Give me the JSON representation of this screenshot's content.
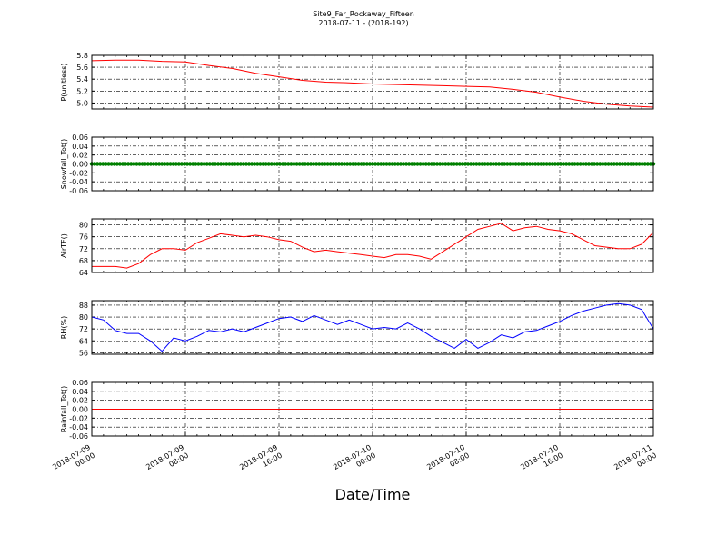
{
  "figure": {
    "title": "Site9_Far_Rockaway_Fifteen",
    "subtitle": "2018-07-11 - (2018-192)",
    "xlabel": "Date/Time"
  },
  "x_tick_labels": [
    [
      "2018-07-09",
      "00:00"
    ],
    [
      "2018-07-09",
      "08:00"
    ],
    [
      "2018-07-09",
      "16:00"
    ],
    [
      "2018-07-10",
      "00:00"
    ],
    [
      "2018-07-10",
      "08:00"
    ],
    [
      "2018-07-10",
      "16:00"
    ],
    [
      "2018-07-11",
      "00:00"
    ]
  ],
  "chart_data": [
    {
      "type": "line",
      "ylabel": "P(unitless)",
      "ylim": [
        4.9,
        5.8
      ],
      "yticks": [
        "5.8",
        "5.6",
        "5.4",
        "5.2",
        "5.0"
      ],
      "grid": true,
      "color": "#ff0000",
      "x_hours": [
        0,
        2,
        4,
        6,
        8,
        10,
        12,
        14,
        16,
        18,
        20,
        22,
        24,
        26,
        28,
        30,
        32,
        34,
        36,
        38,
        40,
        42,
        44,
        46,
        48
      ],
      "values": [
        5.71,
        5.72,
        5.72,
        5.7,
        5.69,
        5.63,
        5.58,
        5.5,
        5.44,
        5.38,
        5.35,
        5.34,
        5.32,
        5.31,
        5.3,
        5.29,
        5.28,
        5.27,
        5.23,
        5.18,
        5.1,
        5.03,
        4.98,
        4.95,
        4.93
      ]
    },
    {
      "type": "scatter",
      "ylabel": "Snowfall_Tot()",
      "ylim": [
        -0.06,
        0.06
      ],
      "yticks": [
        "0.06",
        "0.04",
        "0.02",
        "0.00",
        "-0.02",
        "-0.04",
        "-0.06"
      ],
      "grid": true,
      "color": "#008000",
      "x_hours": [
        0,
        48
      ],
      "values": [
        0,
        0
      ],
      "note_constant": "dense green markers along 0.00"
    },
    {
      "type": "line",
      "ylabel": "AirTF()",
      "ylim": [
        64,
        82
      ],
      "yticks": [
        "80",
        "76",
        "72",
        "68",
        "64"
      ],
      "grid": true,
      "color": "#ff0000",
      "x_hours": [
        0,
        1,
        2,
        3,
        4,
        5,
        6,
        7,
        8,
        9,
        10,
        11,
        12,
        13,
        14,
        15,
        16,
        17,
        18,
        19,
        20,
        21,
        22,
        23,
        24,
        25,
        26,
        27,
        28,
        29,
        30,
        31,
        32,
        33,
        34,
        35,
        36,
        37,
        38,
        39,
        40,
        41,
        42,
        43,
        44,
        45,
        46,
        47,
        48
      ],
      "values": [
        66,
        66,
        66,
        65.5,
        67,
        70,
        72,
        72,
        71.5,
        74,
        75.5,
        77,
        76.5,
        76,
        76.5,
        76,
        75,
        74.5,
        72.5,
        71,
        71.5,
        71,
        70.5,
        70,
        69.5,
        69,
        70,
        70,
        69.5,
        68.5,
        71,
        73.5,
        76,
        78.5,
        79.5,
        80.5,
        78,
        79,
        79.5,
        78.5,
        78,
        77,
        75,
        73,
        72.5,
        72,
        72,
        73.5,
        77.5
      ]
    },
    {
      "type": "line",
      "ylabel": "RH(%)",
      "ylim": [
        55,
        91
      ],
      "yticks": [
        "88",
        "80",
        "72",
        "64",
        "56"
      ],
      "grid": true,
      "color": "#0000ff",
      "x_hours": [
        0,
        1,
        2,
        3,
        4,
        5,
        6,
        7,
        8,
        9,
        10,
        11,
        12,
        13,
        14,
        15,
        16,
        17,
        18,
        19,
        20,
        21,
        22,
        23,
        24,
        25,
        26,
        27,
        28,
        29,
        30,
        31,
        32,
        33,
        34,
        35,
        36,
        37,
        38,
        39,
        40,
        41,
        42,
        43,
        44,
        45,
        46,
        47,
        48
      ],
      "values": [
        80,
        78,
        71,
        69,
        69,
        64,
        57,
        66,
        64,
        67,
        71,
        70,
        72,
        70,
        73,
        76,
        79,
        80,
        77,
        81,
        78,
        75,
        78,
        75,
        72,
        73,
        72,
        76,
        72,
        67,
        63,
        59,
        65,
        59,
        63,
        68,
        66,
        70,
        71,
        74,
        77,
        81,
        84,
        86,
        88,
        89,
        88,
        85,
        72
      ]
    },
    {
      "type": "line",
      "ylabel": "Rainfall_Tot()",
      "ylim": [
        -0.06,
        0.06
      ],
      "yticks": [
        "0.06",
        "0.04",
        "0.02",
        "0.00",
        "-0.02",
        "-0.04",
        "-0.06"
      ],
      "grid": true,
      "color": "#ff0000",
      "x_hours": [
        0,
        48
      ],
      "values": [
        0,
        0
      ]
    }
  ]
}
